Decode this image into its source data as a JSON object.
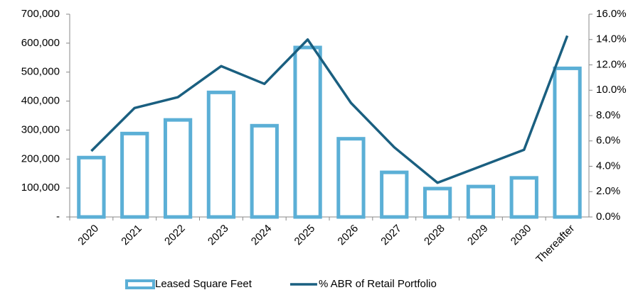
{
  "chart_data": {
    "type": "bar",
    "categories": [
      "2020",
      "2021",
      "2022",
      "2023",
      "2024",
      "2025",
      "2026",
      "2027",
      "2028",
      "2029",
      "2030",
      "Thereafter"
    ],
    "series": [
      {
        "name": "Leased Square Feet",
        "type": "bar",
        "axis": "y",
        "color": "#5bafd6",
        "values": [
          205000,
          288000,
          335000,
          430000,
          315000,
          585000,
          270000,
          154000,
          98000,
          105000,
          135000,
          513000
        ]
      },
      {
        "name": "% ABR of Retail Portfolio",
        "type": "line",
        "axis": "y2",
        "color": "#1a5f80",
        "values": [
          5.2,
          8.6,
          9.45,
          11.9,
          10.5,
          14.0,
          9.0,
          5.5,
          2.7,
          4.0,
          5.3,
          14.3
        ]
      }
    ],
    "ylim": [
      0,
      700000
    ],
    "yticks": [
      {
        "value": 0,
        "label": "-"
      },
      {
        "value": 100000,
        "label": "100,000"
      },
      {
        "value": 200000,
        "label": "200,000"
      },
      {
        "value": 300000,
        "label": "300,000"
      },
      {
        "value": 400000,
        "label": "400,000"
      },
      {
        "value": 500000,
        "label": "500,000"
      },
      {
        "value": 600000,
        "label": "600,000"
      },
      {
        "value": 700000,
        "label": "700,000"
      }
    ],
    "y2lim": [
      0,
      16
    ],
    "y2ticks": [
      {
        "value": 0,
        "label": "0.0%"
      },
      {
        "value": 2,
        "label": "2.0%"
      },
      {
        "value": 4,
        "label": "4.0%"
      },
      {
        "value": 6,
        "label": "6.0%"
      },
      {
        "value": 8,
        "label": "8.0%"
      },
      {
        "value": 10,
        "label": "10.0%"
      },
      {
        "value": 12,
        "label": "12.0%"
      },
      {
        "value": 14,
        "label": "14.0%"
      },
      {
        "value": 16,
        "label": "16.0%"
      }
    ],
    "grid": false,
    "legend": "bottom"
  }
}
